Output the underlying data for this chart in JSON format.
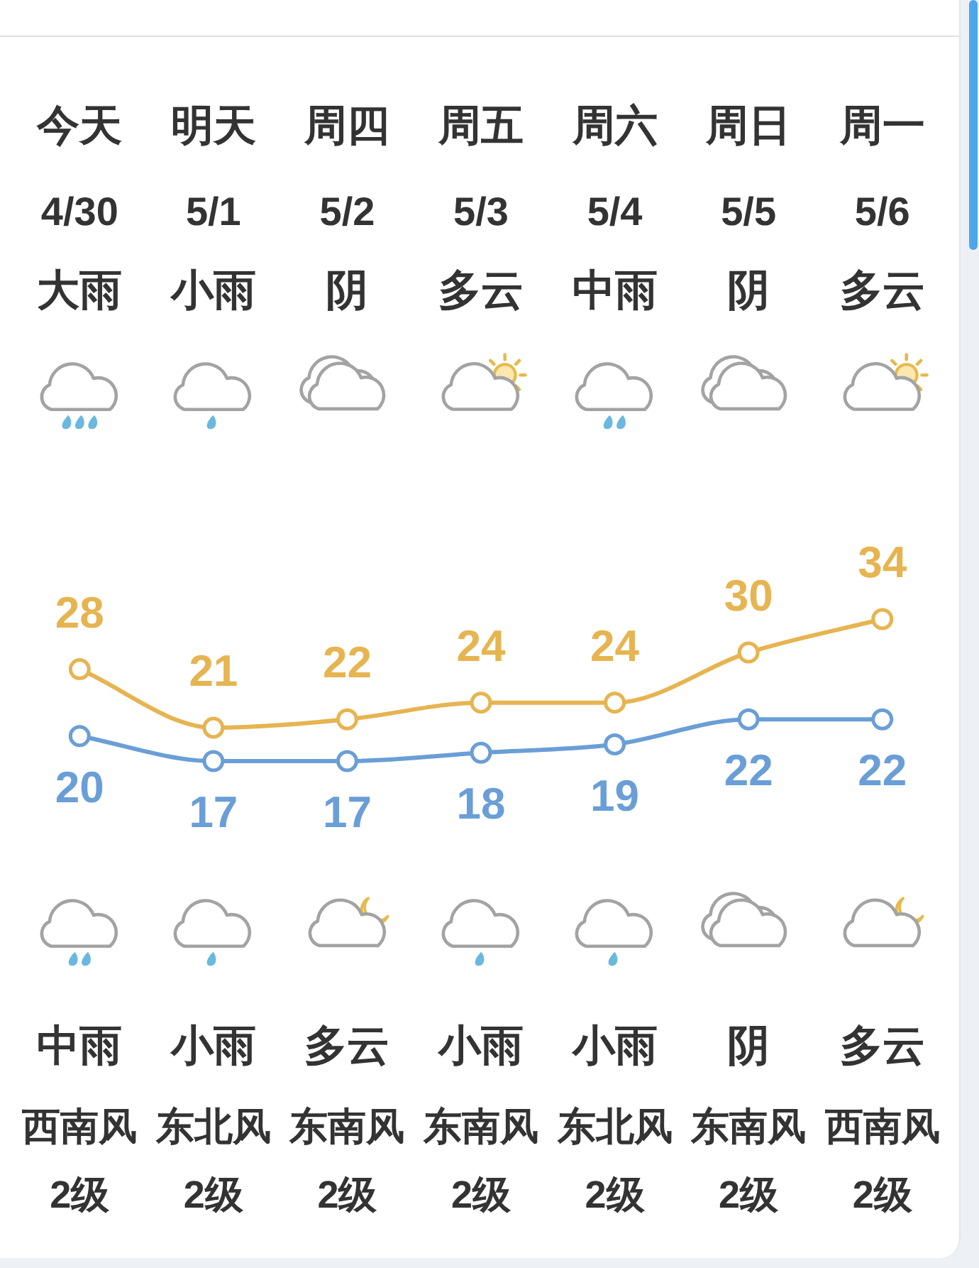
{
  "chart_data": {
    "type": "line",
    "categories": [
      "今天",
      "明天",
      "周四",
      "周五",
      "周六",
      "周日",
      "周一"
    ],
    "series": [
      {
        "color": "#e6b450",
        "values": [
          28,
          21,
          22,
          24,
          24,
          30,
          34
        ]
      },
      {
        "color": "#6a9ed6",
        "values": [
          20,
          17,
          17,
          18,
          19,
          22,
          22
        ]
      }
    ],
    "tick_labels": "x",
    "marker": "circle",
    "line_style": "solid",
    "data_labels": true,
    "annotations": [
      "4/30",
      "5/1",
      "5/2",
      "5/3",
      "5/4",
      "5/5",
      "5/6",
      "大雨",
      "小雨",
      "阴",
      "多云",
      "中雨",
      "阴",
      "多云",
      "中雨",
      "小雨",
      "多云",
      "小雨",
      "小雨",
      "阴",
      "多云",
      "西南风",
      "东北风",
      "东南风",
      "东南风",
      "东北风",
      "东南风",
      "西南风",
      "2级",
      "2级",
      "2级",
      "2级",
      "2级",
      "2级",
      "2级"
    ]
  }
}
